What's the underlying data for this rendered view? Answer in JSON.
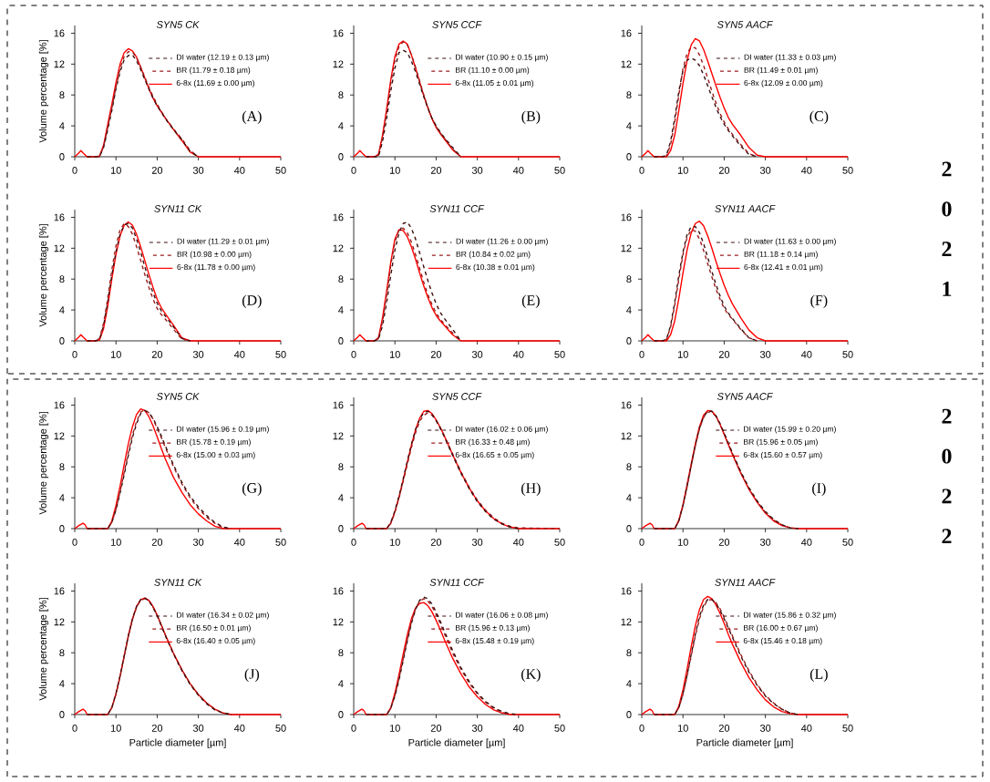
{
  "chart_data": [
    {
      "type": "line",
      "title": "SYN5 CK",
      "ylabel": "Volume percentage [%]",
      "x": [
        0,
        1,
        1.5,
        2,
        3,
        5,
        6,
        7,
        8,
        9,
        10,
        11,
        12,
        13,
        14,
        15,
        16,
        17,
        18,
        19,
        20,
        21,
        22,
        24,
        26,
        28,
        30,
        40,
        50
      ],
      "xlim": [
        0,
        50
      ],
      "xticks": [
        0,
        10,
        20,
        30,
        40,
        50
      ],
      "ylim": [
        0,
        17
      ],
      "yticks": [
        0,
        4,
        8,
        12,
        16
      ],
      "legend": "top right",
      "annotations": [
        "(A)"
      ],
      "series": [
        {
          "name": "DI water (12.19 ± 0.13 µm)",
          "color": "#3d0c0c",
          "line_style": "dashed",
          "values": [
            null,
            null,
            null,
            null,
            0,
            0,
            0,
            1.2,
            3.5,
            6,
            8.8,
            11,
            12.6,
            13.1,
            13.2,
            12.4,
            11.3,
            10,
            8.8,
            7.6,
            6.6,
            5.8,
            4.9,
            3.5,
            2.2,
            0.7,
            0,
            null,
            null
          ]
        },
        {
          "name": "BR (11.79 ± 0.18 µm)",
          "color": "#9b1c1c",
          "line_style": "dashed",
          "values": [
            null,
            null,
            null,
            null,
            0,
            0,
            0,
            1.3,
            3.8,
            6.3,
            9,
            11.4,
            13,
            13.6,
            13.6,
            12.8,
            11.6,
            10.3,
            9,
            7.8,
            6.8,
            5.9,
            5,
            3.6,
            2.3,
            0.8,
            0,
            null,
            null
          ]
        },
        {
          "name": "6-8x (11.69 ± 0.00 µm)",
          "color": "#ff0000",
          "line_style": "solid",
          "values": [
            0,
            0.5,
            0.8,
            0.5,
            0,
            0,
            0.1,
            1.5,
            4.2,
            6.8,
            9.6,
            12,
            13.5,
            14,
            13.7,
            12.9,
            11.6,
            10.2,
            8.8,
            7.6,
            6.6,
            5.8,
            5,
            3.5,
            2.1,
            0.6,
            0,
            0,
            0
          ]
        }
      ]
    },
    {
      "type": "line",
      "title": "SYN5 CCF",
      "x": [
        0,
        1,
        1.5,
        2,
        3,
        5,
        6,
        7,
        8,
        9,
        10,
        11,
        12,
        13,
        14,
        15,
        16,
        17,
        18,
        19,
        20,
        21,
        22,
        24,
        26,
        28,
        30,
        40,
        50
      ],
      "xlim": [
        0,
        50
      ],
      "xticks": [
        0,
        10,
        20,
        30,
        40,
        50
      ],
      "ylim": [
        0,
        17
      ],
      "yticks": [
        0,
        4,
        8,
        12,
        16
      ],
      "legend": "top right",
      "annotations": [
        "(B)"
      ],
      "series": [
        {
          "name": "DI water (10.90 ± 0.15 µm)",
          "color": "#3d0c0c",
          "line_style": "dashed",
          "values": [
            null,
            null,
            null,
            null,
            0,
            0,
            0,
            2,
            5,
            8.5,
            11.5,
            13.5,
            13.8,
            13.5,
            12.4,
            11,
            9.4,
            7.8,
            6.3,
            5,
            4,
            3.2,
            2.5,
            1.2,
            0,
            null,
            null,
            null,
            null
          ]
        },
        {
          "name": "BR (11.10 ± 0.00 µm)",
          "color": "#9b1c1c",
          "line_style": "dashed",
          "values": [
            null,
            null,
            null,
            null,
            0,
            0,
            0.2,
            2.5,
            5.8,
            9.5,
            12.5,
            14.3,
            14.9,
            14.5,
            13.2,
            11.6,
            9.8,
            8,
            6.4,
            5,
            3.9,
            3.1,
            2.4,
            1,
            0,
            null,
            null,
            null,
            null
          ]
        },
        {
          "name": "6-8x (11.05 ± 0.01 µm)",
          "color": "#ff0000",
          "line_style": "solid",
          "values": [
            0,
            0.5,
            0.8,
            0.5,
            0,
            0,
            0.3,
            2.8,
            6.2,
            10,
            13,
            14.6,
            15,
            14.6,
            13.2,
            11.5,
            9.7,
            7.9,
            6.3,
            4.9,
            3.8,
            3,
            2.3,
            0.9,
            0,
            0,
            0,
            0,
            0
          ]
        }
      ]
    },
    {
      "type": "line",
      "title": "SYN5 AACF",
      "x": [
        0,
        1,
        1.5,
        2,
        3,
        5,
        6,
        7,
        8,
        9,
        10,
        11,
        12,
        13,
        14,
        15,
        16,
        17,
        18,
        19,
        20,
        21,
        22,
        24,
        26,
        28,
        30,
        40,
        50
      ],
      "xlim": [
        0,
        50
      ],
      "xticks": [
        0,
        10,
        20,
        30,
        40,
        50
      ],
      "ylim": [
        0,
        17
      ],
      "yticks": [
        0,
        4,
        8,
        12,
        16
      ],
      "legend": "top right",
      "annotations": [
        "(C)",
        "2",
        "0",
        "2",
        "1"
      ],
      "series": [
        {
          "name": "DI water (11.33 ± 0.03 µm)",
          "color": "#3d0c0c",
          "line_style": "dashed",
          "values": [
            null,
            null,
            null,
            null,
            0,
            0,
            0.2,
            2,
            5,
            8.5,
            11.2,
            12.5,
            12.8,
            12.5,
            11.8,
            10.6,
            9.2,
            7.8,
            6.4,
            5.2,
            4.2,
            3.4,
            2.7,
            1.4,
            0.3,
            0,
            null,
            null,
            null
          ]
        },
        {
          "name": "BR (11.49 ± 0.01 µm)",
          "color": "#9b1c1c",
          "line_style": "dashed",
          "values": [
            null,
            null,
            null,
            null,
            0,
            0,
            0.1,
            1.6,
            4.5,
            8,
            11.4,
            13.4,
            14.2,
            14.1,
            13.2,
            11.8,
            10.2,
            8.5,
            7,
            5.6,
            4.5,
            3.6,
            2.9,
            1.6,
            0.4,
            0,
            null,
            null,
            null
          ]
        },
        {
          "name": "6-8x (12.09 ± 0.00 µm)",
          "color": "#ff0000",
          "line_style": "solid",
          "values": [
            0,
            0.5,
            0.8,
            0.5,
            0,
            0,
            0,
            0.8,
            2.8,
            6,
            9.5,
            12.5,
            14.5,
            15.3,
            15,
            13.9,
            12.4,
            10.8,
            9.2,
            7.7,
            6.3,
            5.1,
            4.2,
            2.8,
            1.2,
            0.2,
            0,
            0,
            0
          ]
        }
      ]
    },
    {
      "type": "line",
      "title": "SYN11 CK",
      "ylabel": "Volume percentage [%]",
      "x": [
        0,
        1,
        1.5,
        2,
        3,
        5,
        6,
        7,
        8,
        9,
        10,
        11,
        12,
        13,
        14,
        15,
        16,
        17,
        18,
        19,
        20,
        21,
        22,
        24,
        26,
        28,
        30,
        40,
        50
      ],
      "xlim": [
        0,
        50
      ],
      "xticks": [
        0,
        10,
        20,
        30,
        40,
        50
      ],
      "ylim": [
        0,
        17
      ],
      "yticks": [
        0,
        4,
        8,
        12,
        16
      ],
      "legend": "top right",
      "annotations": [
        "(D)"
      ],
      "series": [
        {
          "name": "DI water (11.29 ± 0.01 µm)",
          "color": "#3d0c0c",
          "line_style": "dashed",
          "values": [
            null,
            null,
            null,
            null,
            0,
            0,
            0.2,
            2,
            5,
            8.5,
            11.5,
            13.8,
            15,
            15.2,
            14.6,
            13.2,
            11.5,
            9.6,
            7.8,
            6.2,
            4.9,
            3.9,
            3.2,
            1.8,
            0.3,
            0,
            null,
            null,
            null
          ]
        },
        {
          "name": "BR (10.98 ± 0.00 µm)",
          "color": "#9b1c1c",
          "line_style": "dashed",
          "values": [
            null,
            null,
            null,
            null,
            0,
            0,
            0.3,
            2.3,
            5.5,
            9.2,
            12.3,
            14.4,
            15.2,
            14.8,
            13.8,
            12.2,
            10.4,
            8.6,
            6.9,
            5.4,
            4.2,
            3.4,
            2.8,
            1.5,
            0.2,
            0,
            null,
            null,
            null
          ]
        },
        {
          "name": "6-8x (11.78 ± 0.00 µm)",
          "color": "#ff0000",
          "line_style": "solid",
          "values": [
            0,
            0.5,
            0.8,
            0.5,
            0,
            0,
            0.1,
            1.6,
            4.5,
            8,
            11.2,
            13.6,
            15,
            15.4,
            15,
            13.8,
            12.2,
            10.4,
            8.6,
            6.9,
            5.4,
            4.3,
            3.5,
            2,
            0.4,
            0,
            0,
            0,
            0
          ]
        }
      ]
    },
    {
      "type": "line",
      "title": "SYN11 CCF",
      "x": [
        0,
        1,
        1.5,
        2,
        3,
        5,
        6,
        7,
        8,
        9,
        10,
        11,
        12,
        13,
        14,
        15,
        16,
        17,
        18,
        19,
        20,
        21,
        22,
        24,
        26,
        28,
        30,
        40,
        50
      ],
      "xlim": [
        0,
        50
      ],
      "xticks": [
        0,
        10,
        20,
        30,
        40,
        50
      ],
      "ylim": [
        0,
        17
      ],
      "yticks": [
        0,
        4,
        8,
        12,
        16
      ],
      "legend": "top right",
      "annotations": [
        "(E)"
      ],
      "series": [
        {
          "name": "DI water (11.26 ± 0.00 µm)",
          "color": "#3d0c0c",
          "line_style": "dashed",
          "values": [
            null,
            null,
            null,
            null,
            0,
            0,
            0.2,
            2,
            5,
            8.5,
            11.8,
            14,
            15.2,
            15.4,
            14.6,
            13.2,
            11.4,
            9.6,
            7.8,
            6.2,
            4.8,
            3.7,
            2.9,
            1.5,
            0,
            null,
            null,
            null,
            null
          ]
        },
        {
          "name": "BR (10.84 ± 0.02 µm)",
          "color": "#9b1c1c",
          "line_style": "dashed",
          "values": [
            null,
            null,
            null,
            null,
            0,
            0,
            0.3,
            2.5,
            6,
            9.8,
            12.8,
            14.4,
            14.6,
            14,
            12.8,
            11.2,
            9.4,
            7.6,
            6,
            4.7,
            3.6,
            2.8,
            2.2,
            1,
            0,
            null,
            null,
            null,
            null
          ]
        },
        {
          "name": "6-8x (10.38 ± 0.01 µm)",
          "color": "#ff0000",
          "line_style": "solid",
          "values": [
            0,
            0.5,
            0.8,
            0.5,
            0,
            0,
            0.4,
            3,
            6.5,
            10.2,
            13.2,
            14.4,
            14.3,
            13.5,
            12.2,
            10.6,
            8.8,
            7.1,
            5.6,
            4.3,
            3.3,
            2.6,
            2,
            0.8,
            0,
            0,
            0,
            0,
            0
          ]
        }
      ]
    },
    {
      "type": "line",
      "title": "SYN11 AACF",
      "x": [
        0,
        1,
        1.5,
        2,
        3,
        5,
        6,
        7,
        8,
        9,
        10,
        11,
        12,
        13,
        14,
        15,
        16,
        17,
        18,
        19,
        20,
        21,
        22,
        24,
        26,
        28,
        30,
        40,
        50
      ],
      "xlim": [
        0,
        50
      ],
      "xticks": [
        0,
        10,
        20,
        30,
        40,
        50
      ],
      "ylim": [
        0,
        17
      ],
      "yticks": [
        0,
        4,
        8,
        12,
        16
      ],
      "legend": "top right",
      "annotations": [
        "(F)"
      ],
      "series": [
        {
          "name": "DI water (11.63 ± 0.00 µm)",
          "color": "#3d0c0c",
          "line_style": "dashed",
          "values": [
            null,
            null,
            null,
            null,
            0,
            0,
            0.2,
            2,
            5,
            8.5,
            11.5,
            13.8,
            14.8,
            14.8,
            14,
            12.6,
            10.8,
            9,
            7.3,
            5.8,
            4.5,
            3.6,
            2.9,
            1.6,
            0.4,
            0,
            null,
            null,
            null
          ]
        },
        {
          "name": "BR (11.18 ± 0.14 µm)",
          "color": "#9b1c1c",
          "line_style": "dashed",
          "values": [
            null,
            null,
            null,
            null,
            0,
            0,
            0.2,
            1.8,
            4.6,
            8,
            11.2,
            13.4,
            14.4,
            14.2,
            13.2,
            11.7,
            10,
            8.3,
            6.7,
            5.4,
            4.2,
            3.4,
            2.8,
            1.5,
            0.4,
            0,
            null,
            null,
            null
          ]
        },
        {
          "name": "6-8x (12.41 ± 0.01 µm)",
          "color": "#ff0000",
          "line_style": "solid",
          "values": [
            0,
            0.5,
            0.8,
            0.5,
            0,
            0,
            0,
            0.8,
            2.6,
            5.5,
            8.8,
            11.8,
            14,
            15.2,
            15.5,
            14.9,
            13.6,
            12,
            10.3,
            8.7,
            7.2,
            5.9,
            4.8,
            3,
            1.4,
            0.4,
            0,
            0,
            0
          ]
        }
      ]
    },
    {
      "type": "line",
      "title": "SYN5 CK",
      "ylabel": "Volume percentage [%]",
      "x": [
        0,
        1,
        2,
        2.5,
        3,
        5,
        8,
        9,
        10,
        11,
        12,
        13,
        14,
        15,
        16,
        17,
        18,
        19,
        20,
        21,
        22,
        24,
        26,
        28,
        30,
        32,
        34,
        36,
        38,
        40,
        50
      ],
      "xlim": [
        0,
        50
      ],
      "xticks": [
        0,
        10,
        20,
        30,
        40,
        50
      ],
      "ylim": [
        0,
        17
      ],
      "yticks": [
        0,
        4,
        8,
        12,
        16
      ],
      "legend": "top right",
      "annotations": [
        "(G)"
      ],
      "series": [
        {
          "name": "DI water (15.96 ± 0.19 µm)",
          "color": "#3d0c0c",
          "line_style": "dashed",
          "values": [
            null,
            null,
            null,
            null,
            0,
            0,
            0,
            0.8,
            2.4,
            4.6,
            7,
            9.5,
            11.8,
            13.6,
            14.9,
            15.3,
            15,
            14.3,
            13.2,
            12,
            10.7,
            8.2,
            6,
            4.2,
            2.8,
            1.7,
            0.8,
            0.2,
            0,
            null,
            null
          ]
        },
        {
          "name": "BR (15.78 ± 0.19 µm)",
          "color": "#9b1c1c",
          "line_style": "dashed",
          "values": [
            null,
            null,
            null,
            null,
            0,
            0,
            0,
            0.8,
            2.5,
            4.8,
            7.3,
            9.8,
            12.1,
            13.9,
            15.1,
            15.4,
            15,
            14.2,
            13,
            11.8,
            10.5,
            8,
            5.8,
            4,
            2.6,
            1.5,
            0.7,
            0.1,
            0,
            null,
            null
          ]
        },
        {
          "name": "6-8x (15.00 ± 0.03 µm)",
          "color": "#ff0000",
          "line_style": "solid",
          "values": [
            0,
            0.4,
            0.7,
            0.5,
            0,
            0,
            0,
            1,
            3,
            5.5,
            8.3,
            11,
            13.2,
            14.8,
            15.5,
            15.3,
            14.5,
            13.3,
            11.9,
            10.4,
            9,
            6.6,
            4.7,
            3.1,
            1.9,
            1,
            0.3,
            0,
            0,
            0,
            0
          ]
        }
      ]
    },
    {
      "type": "line",
      "title": "SYN5 CCF",
      "x": [
        0,
        1,
        2,
        2.5,
        3,
        5,
        8,
        9,
        10,
        11,
        12,
        13,
        14,
        15,
        16,
        17,
        18,
        19,
        20,
        21,
        22,
        24,
        26,
        28,
        30,
        32,
        34,
        36,
        38,
        40,
        50
      ],
      "xlim": [
        0,
        50
      ],
      "xticks": [
        0,
        10,
        20,
        30,
        40,
        50
      ],
      "ylim": [
        0,
        17
      ],
      "yticks": [
        0,
        4,
        8,
        12,
        16
      ],
      "legend": "top right",
      "annotations": [
        "(H)"
      ],
      "series": [
        {
          "name": "DI water (16.02 ± 0.06 µm)",
          "color": "#3d0c0c",
          "line_style": "dashed",
          "values": [
            null,
            null,
            null,
            null,
            0,
            0,
            0,
            0.8,
            2.3,
            4.2,
            6.4,
            8.7,
            10.9,
            12.8,
            14.2,
            15,
            15.2,
            14.8,
            14,
            13,
            11.9,
            9.5,
            7.2,
            5.2,
            3.5,
            2.2,
            1.2,
            0.6,
            0.2,
            0,
            null
          ]
        },
        {
          "name": "BR (16.33 ± 0.48 µm)",
          "color": "#9b1c1c",
          "line_style": "dashed",
          "values": [
            null,
            null,
            null,
            null,
            0,
            0,
            0,
            0.7,
            2.1,
            4,
            6.1,
            8.3,
            10.5,
            12.4,
            13.9,
            14.7,
            15,
            14.7,
            14,
            13.1,
            12,
            9.7,
            7.4,
            5.4,
            3.7,
            2.4,
            1.4,
            0.7,
            0.3,
            0.1,
            0
          ]
        },
        {
          "name": "6-8x (16.65 ± 0.05 µm)",
          "color": "#ff0000",
          "line_style": "solid",
          "values": [
            0,
            0.4,
            0.7,
            0.5,
            0,
            0,
            0,
            0.7,
            2.2,
            4.1,
            6.3,
            8.6,
            10.8,
            12.8,
            14.3,
            15.2,
            15.3,
            14.9,
            14.1,
            13.1,
            12,
            9.6,
            7.3,
            5.3,
            3.6,
            2.3,
            1.3,
            0.6,
            0.2,
            0,
            0
          ]
        }
      ]
    },
    {
      "type": "line",
      "title": "SYN5 AACF",
      "x": [
        0,
        1,
        2,
        2.5,
        3,
        5,
        8,
        9,
        10,
        11,
        12,
        13,
        14,
        15,
        16,
        17,
        18,
        19,
        20,
        21,
        22,
        24,
        26,
        28,
        30,
        32,
        34,
        36,
        38,
        40,
        50
      ],
      "xlim": [
        0,
        50
      ],
      "xticks": [
        0,
        10,
        20,
        30,
        40,
        50
      ],
      "ylim": [
        0,
        17
      ],
      "yticks": [
        0,
        4,
        8,
        12,
        16
      ],
      "legend": "top right",
      "annotations": [
        "(I)",
        "2",
        "0",
        "2",
        "2"
      ],
      "series": [
        {
          "name": "DI water (15.99 ± 0.20 µm)",
          "color": "#3d0c0c",
          "line_style": "dashed",
          "values": [
            null,
            null,
            null,
            null,
            0,
            0,
            0,
            1,
            3,
            5.5,
            8.2,
            10.8,
            13,
            14.5,
            15.2,
            15.2,
            14.6,
            13.6,
            12.4,
            11.1,
            9.8,
            7.4,
            5.3,
            3.6,
            2.2,
            1.2,
            0.5,
            0.1,
            0,
            null,
            null
          ]
        },
        {
          "name": "BR (15.96 ± 0.05 µm)",
          "color": "#9b1c1c",
          "line_style": "dashed",
          "values": [
            null,
            null,
            null,
            null,
            0,
            0,
            0,
            1,
            2.9,
            5.4,
            8.1,
            10.7,
            12.9,
            14.4,
            15.1,
            15.1,
            14.5,
            13.5,
            12.3,
            11,
            9.7,
            7.3,
            5.2,
            3.5,
            2.1,
            1.1,
            0.5,
            0.1,
            0,
            null,
            null
          ]
        },
        {
          "name": "6-8x (15.60 ± 0.57 µm)",
          "color": "#ff0000",
          "line_style": "solid",
          "values": [
            0,
            0.4,
            0.7,
            0.5,
            0,
            0,
            0,
            1.1,
            3.1,
            5.7,
            8.4,
            11,
            13.2,
            14.7,
            15.3,
            15.2,
            14.6,
            13.5,
            12.2,
            10.9,
            9.6,
            7.2,
            5.1,
            3.4,
            2,
            1,
            0.4,
            0.1,
            0,
            0,
            0
          ]
        }
      ]
    },
    {
      "type": "line",
      "title": "SYN11 CK",
      "ylabel": "Volume percentage [%]",
      "xlabel": "Particle diameter [µm]",
      "x": [
        0,
        1,
        2,
        2.5,
        3,
        5,
        8,
        9,
        10,
        11,
        12,
        13,
        14,
        15,
        16,
        17,
        18,
        19,
        20,
        21,
        22,
        24,
        26,
        28,
        30,
        32,
        34,
        36,
        38,
        40,
        50
      ],
      "xlim": [
        0,
        50
      ],
      "xticks": [
        0,
        10,
        20,
        30,
        40,
        50
      ],
      "ylim": [
        0,
        17
      ],
      "yticks": [
        0,
        4,
        8,
        12,
        16
      ],
      "legend": "top right",
      "annotations": [
        "(J)"
      ],
      "series": [
        {
          "name": "DI water (16.34 ± 0.02 µm)",
          "color": "#3d0c0c",
          "line_style": "dashed",
          "values": [
            null,
            null,
            null,
            null,
            0,
            0,
            0,
            0.9,
            2.7,
            5,
            7.6,
            10.2,
            12.4,
            14,
            14.9,
            15.1,
            14.7,
            13.9,
            12.8,
            11.5,
            10.2,
            7.8,
            5.7,
            3.9,
            2.5,
            1.4,
            0.6,
            0.2,
            0,
            null,
            null
          ]
        },
        {
          "name": "BR (16.50 ± 0.01 µm)",
          "color": "#9b1c1c",
          "line_style": "dashed",
          "values": [
            null,
            null,
            null,
            null,
            0,
            0,
            0,
            0.9,
            2.6,
            4.9,
            7.5,
            10.1,
            12.3,
            13.9,
            14.8,
            15,
            14.7,
            13.9,
            12.8,
            11.6,
            10.3,
            7.9,
            5.8,
            4,
            2.6,
            1.5,
            0.7,
            0.2,
            0,
            null,
            null
          ]
        },
        {
          "name": "6-8x (16.40 ± 0.05 µm)",
          "color": "#ff0000",
          "line_style": "solid",
          "values": [
            0,
            0.4,
            0.7,
            0.5,
            0,
            0,
            0,
            0.9,
            2.7,
            5,
            7.6,
            10.2,
            12.4,
            14,
            14.9,
            15.1,
            14.8,
            14,
            12.9,
            11.6,
            10.3,
            7.9,
            5.8,
            4,
            2.6,
            1.5,
            0.7,
            0.2,
            0,
            0,
            0
          ]
        }
      ]
    },
    {
      "type": "line",
      "title": "SYN11 CCF",
      "xlabel": "Particle diameter [µm]",
      "x": [
        0,
        1,
        2,
        2.5,
        3,
        5,
        8,
        9,
        10,
        11,
        12,
        13,
        14,
        15,
        16,
        17,
        18,
        19,
        20,
        21,
        22,
        24,
        26,
        28,
        30,
        32,
        34,
        36,
        38,
        40,
        50
      ],
      "xlim": [
        0,
        50
      ],
      "xticks": [
        0,
        10,
        20,
        30,
        40,
        50
      ],
      "ylim": [
        0,
        17
      ],
      "yticks": [
        0,
        4,
        8,
        12,
        16
      ],
      "legend": "top right",
      "annotations": [
        "(K)"
      ],
      "series": [
        {
          "name": "DI water (16.06 ± 0.08 µm)",
          "color": "#3d0c0c",
          "line_style": "dashed",
          "values": [
            null,
            null,
            null,
            null,
            0,
            0,
            0,
            0.8,
            2.4,
            4.5,
            7,
            9.5,
            11.8,
            13.6,
            14.8,
            15.2,
            15,
            14.3,
            13.3,
            12.1,
            10.8,
            8.3,
            6.1,
            4.3,
            2.8,
            1.7,
            0.9,
            0.4,
            0.1,
            0,
            null
          ]
        },
        {
          "name": "BR (15.96 ± 0.13 µm)",
          "color": "#9b1c1c",
          "line_style": "dashed",
          "values": [
            null,
            null,
            null,
            null,
            0,
            0,
            0,
            0.8,
            2.5,
            4.7,
            7.2,
            9.7,
            12,
            13.7,
            14.7,
            15,
            14.7,
            14,
            13,
            11.8,
            10.5,
            8,
            5.9,
            4.1,
            2.7,
            1.6,
            0.8,
            0.3,
            0,
            null,
            null
          ]
        },
        {
          "name": "6-8x (15.48 ± 0.19 µm)",
          "color": "#ff0000",
          "line_style": "solid",
          "values": [
            0,
            0.4,
            0.7,
            0.5,
            0,
            0,
            0,
            0.9,
            2.8,
            5.2,
            7.8,
            10.3,
            12.4,
            13.8,
            14.4,
            14.5,
            14.1,
            13.3,
            12.2,
            11,
            9.7,
            7.3,
            5.3,
            3.6,
            2.3,
            1.3,
            0.6,
            0.2,
            0,
            0,
            0
          ]
        }
      ]
    },
    {
      "type": "line",
      "title": "SYN11 AACF",
      "xlabel": "Particle diameter [µm]",
      "x": [
        0,
        1,
        2,
        2.5,
        3,
        5,
        8,
        9,
        10,
        11,
        12,
        13,
        14,
        15,
        16,
        17,
        18,
        19,
        20,
        21,
        22,
        24,
        26,
        28,
        30,
        32,
        34,
        36,
        38,
        40,
        50
      ],
      "xlim": [
        0,
        50
      ],
      "xticks": [
        0,
        10,
        20,
        30,
        40,
        50
      ],
      "ylim": [
        0,
        17
      ],
      "yticks": [
        0,
        4,
        8,
        12,
        16
      ],
      "legend": "top right",
      "annotations": [
        "(L)"
      ],
      "series": [
        {
          "name": "DI water (15.86 ± 0.32 µm)",
          "color": "#3d0c0c",
          "line_style": "dashed",
          "values": [
            null,
            null,
            null,
            null,
            0,
            0,
            0,
            0.9,
            2.7,
            5.1,
            7.8,
            10.4,
            12.7,
            14.2,
            14.9,
            14.9,
            14.4,
            13.5,
            12.4,
            11.2,
            10,
            7.6,
            5.5,
            3.8,
            2.4,
            1.4,
            0.7,
            0.2,
            0,
            null,
            null
          ]
        },
        {
          "name": "BR (16.00 ± 0.67 µm)",
          "color": "#9b1c1c",
          "line_style": "dashed",
          "values": [
            null,
            null,
            null,
            null,
            0,
            0,
            0,
            0.9,
            2.6,
            5,
            7.6,
            10.2,
            12.4,
            14,
            14.8,
            14.9,
            14.5,
            13.7,
            12.6,
            11.4,
            10.2,
            7.8,
            5.7,
            3.9,
            2.5,
            1.5,
            0.7,
            0.2,
            0,
            null,
            null
          ]
        },
        {
          "name": "6-8x (15.46 ± 0.18 µm)",
          "color": "#ff0000",
          "line_style": "solid",
          "values": [
            0,
            0.4,
            0.7,
            0.5,
            0,
            0,
            0,
            1.1,
            3.2,
            5.9,
            8.8,
            11.5,
            13.6,
            14.9,
            15.3,
            15,
            14.2,
            13.1,
            11.8,
            10.4,
            9.1,
            6.8,
            4.8,
            3.2,
            1.9,
            1,
            0.4,
            0.1,
            0,
            0,
            0
          ]
        }
      ]
    }
  ]
}
